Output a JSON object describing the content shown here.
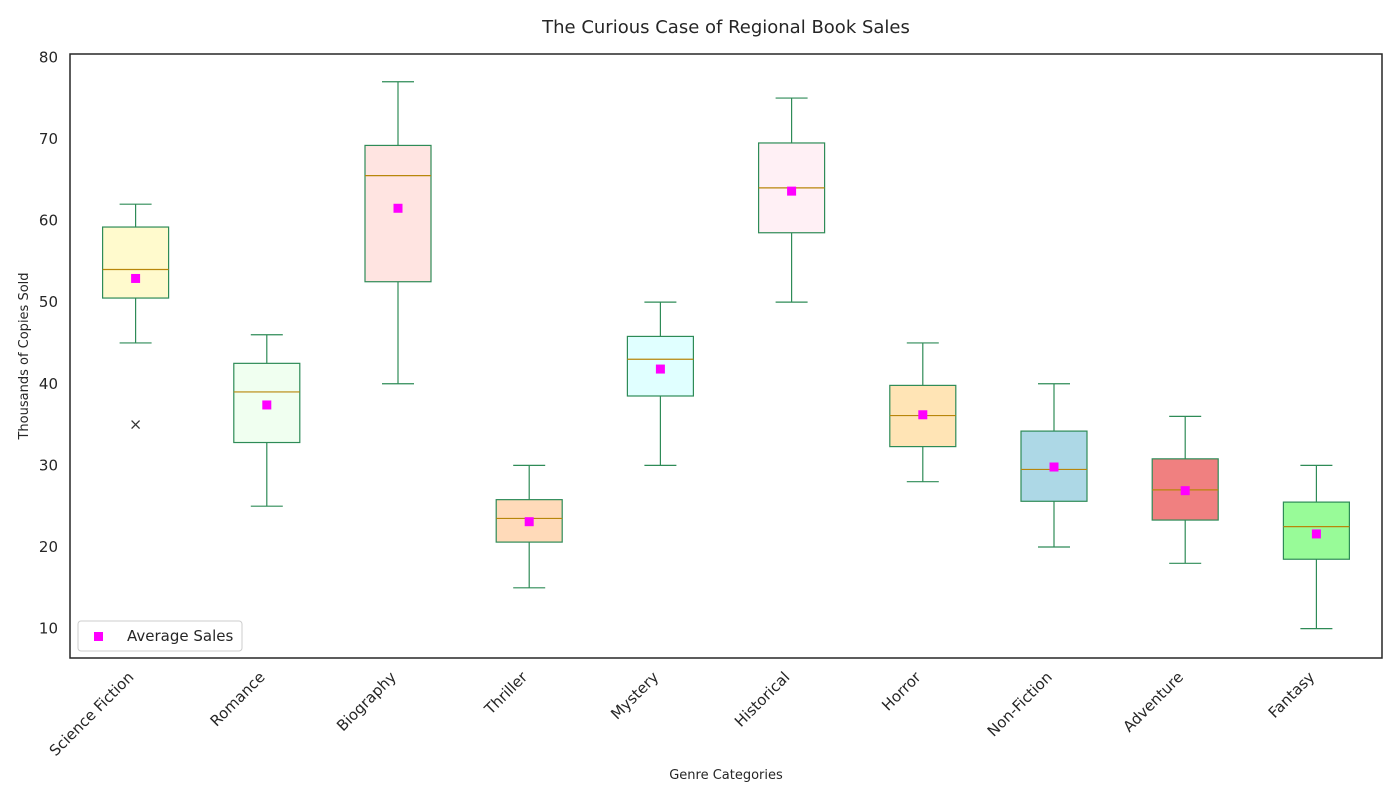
{
  "chart_data": {
    "type": "box",
    "title": "The Curious Case of Regional Book Sales",
    "xlabel": "Genre Categories",
    "ylabel": "Thousands of Copies Sold",
    "ylim": [
      6.4,
      80.4
    ],
    "yticks": [
      10,
      20,
      30,
      40,
      50,
      60,
      70,
      80
    ],
    "grid": false,
    "legend": {
      "position": "bottom-left",
      "entries": [
        "Average Sales"
      ]
    },
    "categories": [
      "Science Fiction",
      "Romance",
      "Biography",
      "Thriller",
      "Mystery",
      "Historical",
      "Horror",
      "Non-Fiction",
      "Adventure",
      "Fantasy"
    ],
    "boxes": [
      {
        "name": "Science Fiction",
        "whisker_low": 45,
        "q1": 50.5,
        "median": 54,
        "q3": 59.2,
        "whisker_high": 62,
        "mean": 52.9,
        "outliers": [
          35
        ],
        "color": "#fffacd"
      },
      {
        "name": "Romance",
        "whisker_low": 25,
        "q1": 32.8,
        "median": 39,
        "q3": 42.5,
        "whisker_high": 46,
        "mean": 37.4,
        "outliers": [],
        "color": "#f0fff0"
      },
      {
        "name": "Biography",
        "whisker_low": 40,
        "q1": 52.5,
        "median": 65.5,
        "q3": 69.2,
        "whisker_high": 77,
        "mean": 61.5,
        "outliers": [],
        "color": "#ffe4e1"
      },
      {
        "name": "Thriller",
        "whisker_low": 15,
        "q1": 20.6,
        "median": 23.5,
        "q3": 25.8,
        "whisker_high": 30,
        "mean": 23.1,
        "outliers": [],
        "color": "#ffdab9"
      },
      {
        "name": "Mystery",
        "whisker_low": 30,
        "q1": 38.5,
        "median": 43,
        "q3": 45.8,
        "whisker_high": 50,
        "mean": 41.8,
        "outliers": [],
        "color": "#e0ffff"
      },
      {
        "name": "Historical",
        "whisker_low": 50,
        "q1": 58.5,
        "median": 64,
        "q3": 69.5,
        "whisker_high": 75,
        "mean": 63.6,
        "outliers": [],
        "color": "#fff0f5"
      },
      {
        "name": "Horror",
        "whisker_low": 28,
        "q1": 32.3,
        "median": 36.1,
        "q3": 39.8,
        "whisker_high": 45,
        "mean": 36.2,
        "outliers": [],
        "color": "#ffe4b5"
      },
      {
        "name": "Non-Fiction",
        "whisker_low": 20,
        "q1": 25.6,
        "median": 29.5,
        "q3": 34.2,
        "whisker_high": 40,
        "mean": 29.8,
        "outliers": [],
        "color": "#add8e6"
      },
      {
        "name": "Adventure",
        "whisker_low": 18,
        "q1": 23.3,
        "median": 27,
        "q3": 30.8,
        "whisker_high": 36,
        "mean": 26.9,
        "outliers": [],
        "color": "#f08080"
      },
      {
        "name": "Fantasy",
        "whisker_low": 10,
        "q1": 18.5,
        "median": 22.5,
        "q3": 25.5,
        "whisker_high": 30,
        "mean": 21.6,
        "outliers": [],
        "color": "#98fb98"
      }
    ],
    "colors": {
      "box_edge": "#2e8b57",
      "median_line": "#b8860b",
      "mean_marker": "#ff00ff",
      "outlier_marker": "#333333",
      "frame": "#262626"
    }
  }
}
